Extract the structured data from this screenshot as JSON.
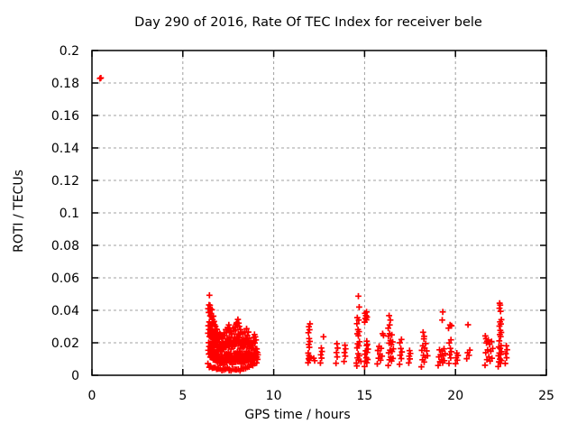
{
  "chart_data": {
    "type": "scatter",
    "title": "Day 290 of 2016, Rate Of TEC Index for receiver bele",
    "xlabel": "GPS time / hours",
    "ylabel": "ROTI / TECUs",
    "xlim": [
      0,
      25
    ],
    "ylim": [
      0,
      0.2
    ],
    "grid": true,
    "legend": "none",
    "marker": "plus",
    "colors": {
      "marker": "#ff0000",
      "grid": "#a0a0a0",
      "axis": "#000000",
      "background": "#ffffff"
    },
    "xticks": {
      "values": [
        0,
        5,
        10,
        15,
        20,
        25
      ],
      "labels": [
        "0",
        "5",
        "10",
        "15",
        "20",
        "25"
      ]
    },
    "yticks": {
      "values": [
        0,
        0.02,
        0.04,
        0.06,
        0.08,
        0.1,
        0.12,
        0.14,
        0.16,
        0.18,
        0.2
      ],
      "labels": [
        "0",
        "0.02",
        "0.04",
        "0.06",
        "0.08",
        "0.1",
        "0.12",
        "0.14",
        "0.16",
        "0.18",
        "0.2"
      ]
    },
    "points": [
      [
        0.44,
        0.1828
      ],
      [
        0.49,
        0.1831
      ],
      [
        6.95,
        0.0045
      ],
      [
        7.05,
        0.004
      ],
      [
        7.25,
        0.0033
      ],
      [
        7.35,
        0.0038
      ],
      [
        7.55,
        0.003
      ],
      [
        7.9,
        0.0035
      ],
      [
        8.2,
        0.004
      ],
      [
        8.45,
        0.0042
      ],
      [
        12.2,
        0.0105
      ],
      [
        12.25,
        0.009
      ],
      [
        12.74,
        0.0237
      ],
      [
        14.55,
        0.0075
      ],
      [
        14.66,
        0.0487
      ],
      [
        14.7,
        0.042
      ],
      [
        14.6,
        0.0355
      ],
      [
        14.68,
        0.034
      ],
      [
        14.8,
        0.0085
      ],
      [
        15.12,
        0.021
      ],
      [
        15.15,
        0.019
      ],
      [
        15.99,
        0.0256
      ],
      [
        16.04,
        0.0245
      ],
      [
        16.3,
        0.029
      ],
      [
        16.35,
        0.0367
      ],
      [
        16.38,
        0.031
      ],
      [
        16.42,
        0.034
      ],
      [
        18.22,
        0.0265
      ],
      [
        18.28,
        0.024
      ],
      [
        18.42,
        0.015
      ],
      [
        18.46,
        0.012
      ],
      [
        19.27,
        0.034
      ],
      [
        19.3,
        0.039
      ],
      [
        19.62,
        0.029
      ],
      [
        19.7,
        0.031
      ],
      [
        19.78,
        0.0305
      ],
      [
        20.69,
        0.0311
      ],
      [
        21.68,
        0.0225
      ],
      [
        21.74,
        0.021
      ],
      [
        22.42,
        0.0413
      ],
      [
        22.43,
        0.0444
      ],
      [
        22.46,
        0.0432
      ],
      [
        22.48,
        0.0394
      ]
    ],
    "dense_bands": [
      [
        6.42,
        0.08,
        0.009,
        0.044,
        12
      ],
      [
        6.5,
        0.08,
        0.007,
        0.048,
        14
      ],
      [
        6.58,
        0.08,
        0.007,
        0.041,
        12
      ],
      [
        6.66,
        0.08,
        0.006,
        0.037,
        12
      ],
      [
        6.74,
        0.08,
        0.006,
        0.033,
        11
      ],
      [
        6.82,
        0.08,
        0.006,
        0.03,
        11
      ],
      [
        6.9,
        0.08,
        0.005,
        0.028,
        11
      ],
      [
        7.0,
        0.12,
        0.005,
        0.026,
        12
      ],
      [
        7.1,
        0.1,
        0.005,
        0.025,
        11
      ],
      [
        7.2,
        0.1,
        0.004,
        0.024,
        11
      ],
      [
        7.3,
        0.1,
        0.005,
        0.026,
        11
      ],
      [
        7.4,
        0.1,
        0.005,
        0.028,
        11
      ],
      [
        7.5,
        0.1,
        0.006,
        0.0315,
        12
      ],
      [
        7.6,
        0.1,
        0.005,
        0.029,
        11
      ],
      [
        7.7,
        0.1,
        0.004,
        0.027,
        11
      ],
      [
        7.8,
        0.1,
        0.005,
        0.029,
        11
      ],
      [
        7.9,
        0.1,
        0.005,
        0.032,
        12
      ],
      [
        8.0,
        0.1,
        0.005,
        0.035,
        12
      ],
      [
        8.1,
        0.1,
        0.005,
        0.032,
        11
      ],
      [
        8.2,
        0.1,
        0.004,
        0.028,
        11
      ],
      [
        8.3,
        0.1,
        0.005,
        0.025,
        10
      ],
      [
        8.4,
        0.1,
        0.005,
        0.026,
        10
      ],
      [
        8.5,
        0.1,
        0.006,
        0.028,
        10
      ],
      [
        8.6,
        0.1,
        0.006,
        0.026,
        10
      ],
      [
        8.7,
        0.1,
        0.006,
        0.022,
        9
      ],
      [
        8.8,
        0.1,
        0.007,
        0.02,
        8
      ],
      [
        8.9,
        0.1,
        0.007,
        0.026,
        9
      ],
      [
        9.0,
        0.1,
        0.008,
        0.024,
        8
      ],
      [
        9.1,
        0.08,
        0.008,
        0.016,
        6
      ],
      [
        11.95,
        0.12,
        0.008,
        0.0135,
        6
      ],
      [
        11.95,
        0.1,
        0.0145,
        0.0325,
        9
      ],
      [
        12.62,
        0.1,
        0.008,
        0.0172,
        5
      ],
      [
        13.48,
        0.1,
        0.008,
        0.02,
        5
      ],
      [
        13.92,
        0.1,
        0.009,
        0.019,
        5
      ],
      [
        14.65,
        0.15,
        0.007,
        0.031,
        14
      ],
      [
        15.1,
        0.2,
        0.006,
        0.018,
        10
      ],
      [
        15.08,
        0.15,
        0.033,
        0.039,
        7
      ],
      [
        15.85,
        0.3,
        0.0075,
        0.018,
        8
      ],
      [
        16.45,
        0.3,
        0.007,
        0.026,
        16
      ],
      [
        17.0,
        0.15,
        0.0075,
        0.022,
        7
      ],
      [
        17.48,
        0.1,
        0.008,
        0.0155,
        5
      ],
      [
        18.25,
        0.25,
        0.006,
        0.022,
        10
      ],
      [
        19.25,
        0.4,
        0.0065,
        0.0165,
        12
      ],
      [
        19.72,
        0.15,
        0.008,
        0.0218,
        7
      ],
      [
        20.08,
        0.15,
        0.0075,
        0.014,
        5
      ],
      [
        20.72,
        0.2,
        0.0105,
        0.0156,
        4
      ],
      [
        21.85,
        0.45,
        0.007,
        0.0237,
        14
      ],
      [
        22.45,
        0.2,
        0.006,
        0.0185,
        12
      ],
      [
        22.47,
        0.12,
        0.0218,
        0.0348,
        9
      ],
      [
        22.8,
        0.12,
        0.0078,
        0.0187,
        5
      ]
    ]
  }
}
